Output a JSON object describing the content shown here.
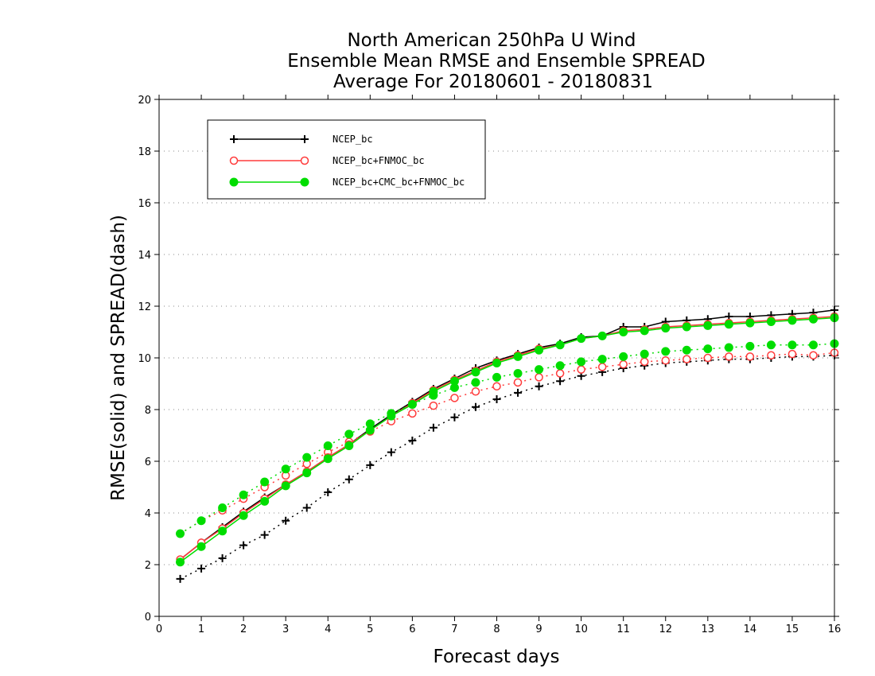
{
  "chart_data": {
    "type": "line",
    "title": [
      "North American 250hPa U Wind",
      "Ensemble Mean RMSE and Ensemble SPREAD",
      "Average For 20180601 - 20180831"
    ],
    "xlabel": "Forecast days",
    "ylabel": "RMSE(solid) and SPREAD(dash)",
    "xlim": [
      0,
      16
    ],
    "ylim": [
      0,
      20
    ],
    "xticks": [
      "0",
      "1",
      "2",
      "3",
      "4",
      "5",
      "6",
      "7",
      "8",
      "9",
      "10",
      "11",
      "12",
      "13",
      "14",
      "15",
      "16"
    ],
    "yticks": [
      "0",
      "2",
      "4",
      "6",
      "8",
      "10",
      "12",
      "14",
      "16",
      "18",
      "20"
    ],
    "grid": "horizontal dotted",
    "legend_position": "top-left",
    "x": [
      0.5,
      1,
      1.5,
      2,
      2.5,
      3,
      3.5,
      4,
      4.5,
      5,
      5.5,
      6,
      6.5,
      7,
      7.5,
      8,
      8.5,
      9,
      9.5,
      10,
      10.5,
      11,
      11.5,
      12,
      12.5,
      13,
      13.5,
      14,
      14.5,
      15,
      15.5,
      16
    ],
    "series": [
      {
        "name": "NCEP_bc",
        "color": "#000000",
        "marker": "plus",
        "rmse": [
          2.2,
          2.85,
          3.45,
          4.05,
          4.6,
          5.1,
          5.6,
          6.15,
          6.65,
          7.25,
          7.8,
          8.3,
          8.8,
          9.2,
          9.6,
          9.9,
          10.15,
          10.4,
          10.55,
          10.8,
          10.85,
          11.2,
          11.2,
          11.4,
          11.45,
          11.5,
          11.6,
          11.6,
          11.65,
          11.7,
          11.75,
          11.85
        ],
        "spread": [
          1.45,
          1.85,
          2.25,
          2.75,
          3.15,
          3.7,
          4.2,
          4.8,
          5.3,
          5.85,
          6.35,
          6.8,
          7.3,
          7.7,
          8.1,
          8.4,
          8.65,
          8.9,
          9.1,
          9.3,
          9.45,
          9.6,
          9.7,
          9.8,
          9.85,
          9.9,
          9.95,
          9.95,
          10.0,
          10.05,
          10.05,
          10.1
        ]
      },
      {
        "name": "NCEP_bc+FNMOC_bc",
        "color": "#ff3b3b",
        "marker": "open-circle",
        "rmse": [
          2.2,
          2.85,
          3.4,
          4.0,
          4.55,
          5.1,
          5.6,
          6.15,
          6.65,
          7.2,
          7.75,
          8.25,
          8.75,
          9.15,
          9.5,
          9.85,
          10.1,
          10.35,
          10.5,
          10.75,
          10.85,
          11.05,
          11.1,
          11.2,
          11.25,
          11.3,
          11.35,
          11.4,
          11.45,
          11.5,
          11.55,
          11.6
        ],
        "spread": [
          3.2,
          3.7,
          4.1,
          4.55,
          5.0,
          5.45,
          5.9,
          6.35,
          6.75,
          7.15,
          7.55,
          7.85,
          8.15,
          8.45,
          8.7,
          8.9,
          9.05,
          9.25,
          9.4,
          9.55,
          9.65,
          9.75,
          9.85,
          9.9,
          9.95,
          10.0,
          10.05,
          10.05,
          10.1,
          10.15,
          10.1,
          10.2
        ]
      },
      {
        "name": "NCEP_bc+CMC_bc+FNMOC_bc",
        "color": "#00dd00",
        "marker": "filled-circle",
        "rmse": [
          2.1,
          2.7,
          3.3,
          3.9,
          4.45,
          5.05,
          5.55,
          6.1,
          6.6,
          7.2,
          7.75,
          8.2,
          8.7,
          9.1,
          9.45,
          9.8,
          10.05,
          10.3,
          10.5,
          10.75,
          10.85,
          11.0,
          11.05,
          11.15,
          11.2,
          11.25,
          11.3,
          11.35,
          11.4,
          11.45,
          11.5,
          11.55
        ],
        "spread": [
          3.2,
          3.7,
          4.2,
          4.7,
          5.2,
          5.7,
          6.15,
          6.6,
          7.05,
          7.45,
          7.85,
          8.2,
          8.55,
          8.85,
          9.05,
          9.25,
          9.4,
          9.55,
          9.7,
          9.85,
          9.95,
          10.05,
          10.15,
          10.25,
          10.3,
          10.35,
          10.4,
          10.45,
          10.5,
          10.5,
          10.5,
          10.55
        ]
      }
    ]
  }
}
